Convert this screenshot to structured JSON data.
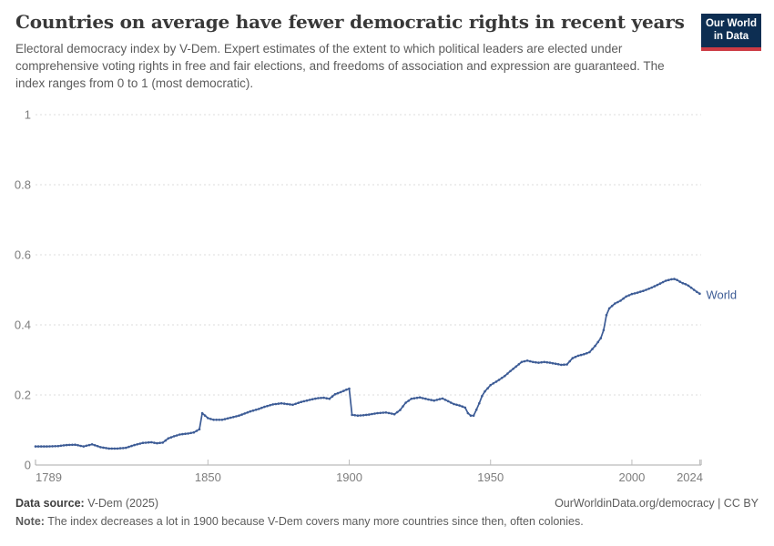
{
  "header": {
    "title": "Countries on average have fewer democratic rights in recent years",
    "subtitle": "Electoral democracy index by V-Dem. Expert estimates of the extent to which political leaders are elected under comprehensive voting rights in free and fair elections, and freedoms of association and expression are guaranteed. The index ranges from 0 to 1 (most democratic)."
  },
  "logo": {
    "line1": "Our World",
    "line2": "in Data",
    "bg_color": "#0d2e52",
    "bar_color": "#cc3b44"
  },
  "chart_data": {
    "type": "line",
    "title": "Countries on average have fewer democratic rights in recent years",
    "xlabel": "",
    "ylabel": "Electoral democracy index",
    "xlim": [
      1789,
      2024
    ],
    "ylim": [
      0,
      1
    ],
    "grid": "dashed-horizontal",
    "legend_position": "end-of-line",
    "x_ticks": [
      1789,
      1850,
      1900,
      1950,
      2000,
      2024
    ],
    "y_ticks": [
      0,
      0.2,
      0.4,
      0.6,
      0.8,
      1
    ],
    "line_color": "#3d5c96",
    "series": [
      {
        "name": "World",
        "points": [
          [
            1789,
            0.053
          ],
          [
            1793,
            0.053
          ],
          [
            1797,
            0.054
          ],
          [
            1800,
            0.057
          ],
          [
            1803,
            0.058
          ],
          [
            1806,
            0.053
          ],
          [
            1809,
            0.059
          ],
          [
            1812,
            0.051
          ],
          [
            1815,
            0.047
          ],
          [
            1818,
            0.047
          ],
          [
            1821,
            0.049
          ],
          [
            1824,
            0.057
          ],
          [
            1827,
            0.063
          ],
          [
            1830,
            0.065
          ],
          [
            1832,
            0.062
          ],
          [
            1834,
            0.064
          ],
          [
            1836,
            0.076
          ],
          [
            1838,
            0.082
          ],
          [
            1840,
            0.087
          ],
          [
            1843,
            0.09
          ],
          [
            1845,
            0.093
          ],
          [
            1847,
            0.102
          ],
          [
            1848,
            0.148
          ],
          [
            1849,
            0.141
          ],
          [
            1850,
            0.134
          ],
          [
            1852,
            0.129
          ],
          [
            1855,
            0.129
          ],
          [
            1858,
            0.135
          ],
          [
            1861,
            0.141
          ],
          [
            1865,
            0.153
          ],
          [
            1868,
            0.16
          ],
          [
            1870,
            0.166
          ],
          [
            1873,
            0.173
          ],
          [
            1876,
            0.176
          ],
          [
            1878,
            0.174
          ],
          [
            1880,
            0.172
          ],
          [
            1883,
            0.18
          ],
          [
            1886,
            0.186
          ],
          [
            1889,
            0.191
          ],
          [
            1891,
            0.192
          ],
          [
            1893,
            0.189
          ],
          [
            1895,
            0.202
          ],
          [
            1897,
            0.208
          ],
          [
            1899,
            0.215
          ],
          [
            1900,
            0.218
          ],
          [
            1901,
            0.143
          ],
          [
            1903,
            0.141
          ],
          [
            1905,
            0.142
          ],
          [
            1907,
            0.144
          ],
          [
            1910,
            0.148
          ],
          [
            1913,
            0.15
          ],
          [
            1916,
            0.145
          ],
          [
            1918,
            0.157
          ],
          [
            1920,
            0.178
          ],
          [
            1922,
            0.189
          ],
          [
            1925,
            0.193
          ],
          [
            1928,
            0.187
          ],
          [
            1930,
            0.184
          ],
          [
            1932,
            0.188
          ],
          [
            1933,
            0.19
          ],
          [
            1935,
            0.182
          ],
          [
            1937,
            0.174
          ],
          [
            1939,
            0.17
          ],
          [
            1941,
            0.164
          ],
          [
            1942,
            0.148
          ],
          [
            1943,
            0.141
          ],
          [
            1944,
            0.141
          ],
          [
            1945,
            0.158
          ],
          [
            1946,
            0.176
          ],
          [
            1947,
            0.197
          ],
          [
            1948,
            0.21
          ],
          [
            1950,
            0.228
          ],
          [
            1953,
            0.243
          ],
          [
            1955,
            0.254
          ],
          [
            1957,
            0.268
          ],
          [
            1959,
            0.281
          ],
          [
            1961,
            0.294
          ],
          [
            1963,
            0.298
          ],
          [
            1965,
            0.294
          ],
          [
            1967,
            0.292
          ],
          [
            1969,
            0.294
          ],
          [
            1971,
            0.292
          ],
          [
            1973,
            0.289
          ],
          [
            1975,
            0.286
          ],
          [
            1977,
            0.287
          ],
          [
            1979,
            0.305
          ],
          [
            1981,
            0.312
          ],
          [
            1983,
            0.316
          ],
          [
            1985,
            0.322
          ],
          [
            1987,
            0.34
          ],
          [
            1989,
            0.362
          ],
          [
            1990,
            0.385
          ],
          [
            1991,
            0.428
          ],
          [
            1992,
            0.447
          ],
          [
            1994,
            0.461
          ],
          [
            1996,
            0.469
          ],
          [
            1998,
            0.481
          ],
          [
            2000,
            0.488
          ],
          [
            2002,
            0.492
          ],
          [
            2004,
            0.497
          ],
          [
            2006,
            0.503
          ],
          [
            2008,
            0.51
          ],
          [
            2010,
            0.518
          ],
          [
            2012,
            0.526
          ],
          [
            2014,
            0.53
          ],
          [
            2015,
            0.531
          ],
          [
            2016,
            0.528
          ],
          [
            2017,
            0.523
          ],
          [
            2018,
            0.519
          ],
          [
            2019,
            0.516
          ],
          [
            2020,
            0.512
          ],
          [
            2021,
            0.506
          ],
          [
            2022,
            0.5
          ],
          [
            2023,
            0.494
          ],
          [
            2024,
            0.489
          ]
        ]
      }
    ]
  },
  "footer": {
    "source_label": "Data source:",
    "source_value": " V-Dem (2025)",
    "link_text": "OurWorldinData.org/democracy | CC BY",
    "note_label": "Note:",
    "note_text": " The index decreases a lot in 1900 because V-Dem covers many more countries since then, often colonies."
  }
}
